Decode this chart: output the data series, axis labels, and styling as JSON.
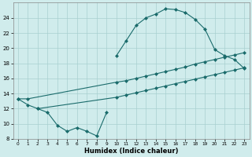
{
  "xlabel": "Humidex (Indice chaleur)",
  "ylabel": "",
  "xlim": [
    -0.5,
    23.5
  ],
  "ylim": [
    8,
    26
  ],
  "xticks": [
    0,
    1,
    2,
    3,
    4,
    5,
    6,
    7,
    8,
    9,
    10,
    11,
    12,
    13,
    14,
    15,
    16,
    17,
    18,
    19,
    20,
    21,
    22,
    23
  ],
  "yticks": [
    8,
    10,
    12,
    14,
    16,
    18,
    20,
    22,
    24
  ],
  "bg_color": "#d0ecec",
  "grid_color": "#a8d0d0",
  "line_color": "#1a6b6b",
  "line_width": 0.8,
  "marker": "D",
  "marker_size": 2.0,
  "series": {
    "curve1_x": [
      10,
      11,
      12,
      13,
      14,
      15,
      16,
      17,
      18,
      19,
      20,
      21,
      22,
      23
    ],
    "curve1_y": [
      19.0,
      21.0,
      23.0,
      24.0,
      24.5,
      25.2,
      25.1,
      24.7,
      23.8,
      22.5,
      19.8,
      19.0,
      18.5,
      17.3
    ],
    "curve2_x": [
      0,
      1,
      10,
      11,
      12,
      13,
      14,
      15,
      16,
      17,
      18,
      19,
      20,
      21,
      22,
      23
    ],
    "curve2_y": [
      13.3,
      13.3,
      15.5,
      15.7,
      16.0,
      16.3,
      16.6,
      16.9,
      17.2,
      17.5,
      17.9,
      18.2,
      18.5,
      18.8,
      19.1,
      19.4
    ],
    "curve3_x": [
      0,
      1,
      2,
      10,
      11,
      12,
      13,
      14,
      15,
      16,
      17,
      18,
      19,
      20,
      21,
      22,
      23
    ],
    "curve3_y": [
      13.3,
      12.5,
      12.0,
      13.5,
      13.8,
      14.1,
      14.4,
      14.7,
      15.0,
      15.3,
      15.6,
      15.9,
      16.2,
      16.5,
      16.8,
      17.1,
      17.4
    ],
    "curve4_x": [
      2,
      3,
      4,
      5,
      6,
      7,
      8,
      9
    ],
    "curve4_y": [
      12.0,
      11.5,
      9.8,
      9.0,
      9.5,
      9.0,
      8.4,
      11.5
    ]
  }
}
